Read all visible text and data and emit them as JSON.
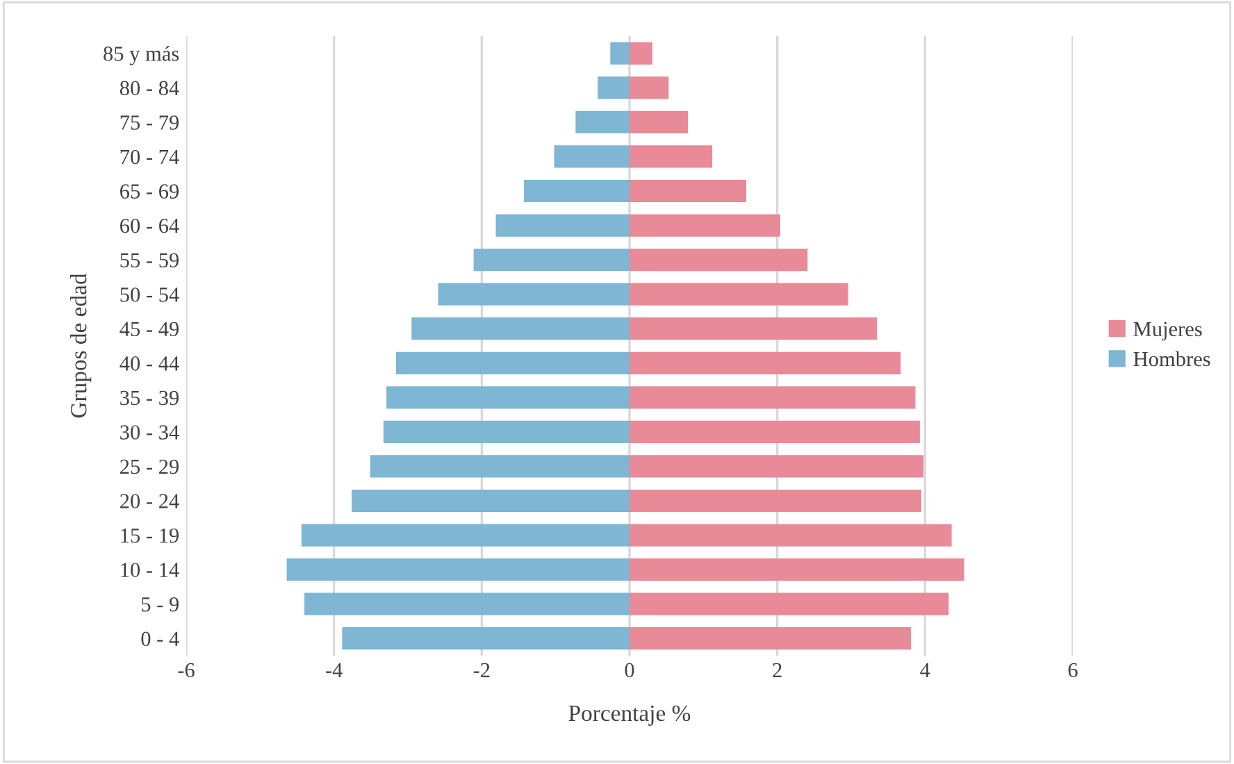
{
  "chart_data": {
    "type": "bar",
    "orientation": "horizontal",
    "xlabel": "Porcentaje %",
    "ylabel": "Grupos de edad",
    "categories": [
      "85 y más",
      "80 - 84",
      "75 - 79",
      "70 - 74",
      "65 - 69",
      "60 - 64",
      "55 - 59",
      "50 - 54",
      "45 - 49",
      "40 - 44",
      "35 - 39",
      "30 - 34",
      "25 - 29",
      "20 - 24",
      "15 - 19",
      "10 - 14",
      "5 - 9",
      "0 - 4"
    ],
    "series": [
      {
        "name": "Mujeres",
        "color": "#e88a98",
        "values": [
          0.31,
          0.53,
          0.79,
          1.12,
          1.58,
          2.04,
          2.41,
          2.96,
          3.35,
          3.67,
          3.87,
          3.93,
          3.98,
          3.95,
          4.36,
          4.53,
          4.32,
          3.81
        ]
      },
      {
        "name": "Hombres",
        "color": "#7eb6d4",
        "values": [
          -0.26,
          -0.43,
          -0.73,
          -1.02,
          -1.43,
          -1.81,
          -2.11,
          -2.59,
          -2.95,
          -3.16,
          -3.29,
          -3.33,
          -3.51,
          -3.76,
          -4.44,
          -4.64,
          -4.4,
          -3.89
        ]
      }
    ],
    "xlim": [
      -6,
      6
    ],
    "xticks": [
      -6,
      -4,
      -2,
      0,
      2,
      4,
      6
    ],
    "grid": "x",
    "legend": "right",
    "stacked": true
  }
}
